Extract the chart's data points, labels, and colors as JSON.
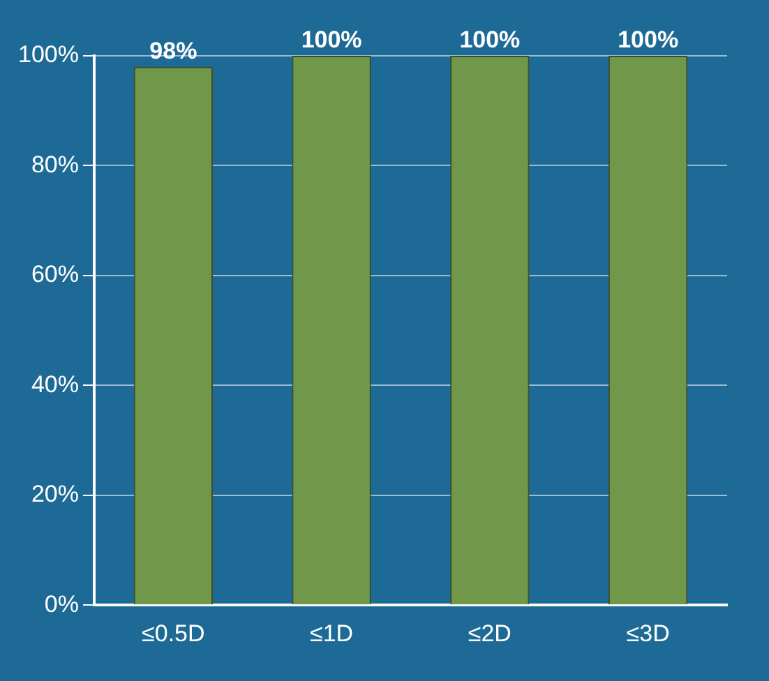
{
  "chart_data": {
    "type": "bar",
    "categories": [
      "≤0.5D",
      "≤1D",
      "≤2D",
      "≤3D"
    ],
    "values": [
      98,
      100,
      100,
      100
    ],
    "color": "#70974a",
    "value_labels": [
      "98%",
      "100%",
      "100%",
      "100%"
    ],
    "ylim": [
      0,
      100
    ],
    "yticks": [
      {
        "value": 0,
        "label": "0%"
      },
      {
        "value": 20,
        "label": "20%"
      },
      {
        "value": 40,
        "label": "40%"
      },
      {
        "value": 60,
        "label": "60%"
      },
      {
        "value": 80,
        "label": "80%"
      },
      {
        "value": 100,
        "label": "100%"
      }
    ],
    "grid": "y",
    "legend": false
  }
}
